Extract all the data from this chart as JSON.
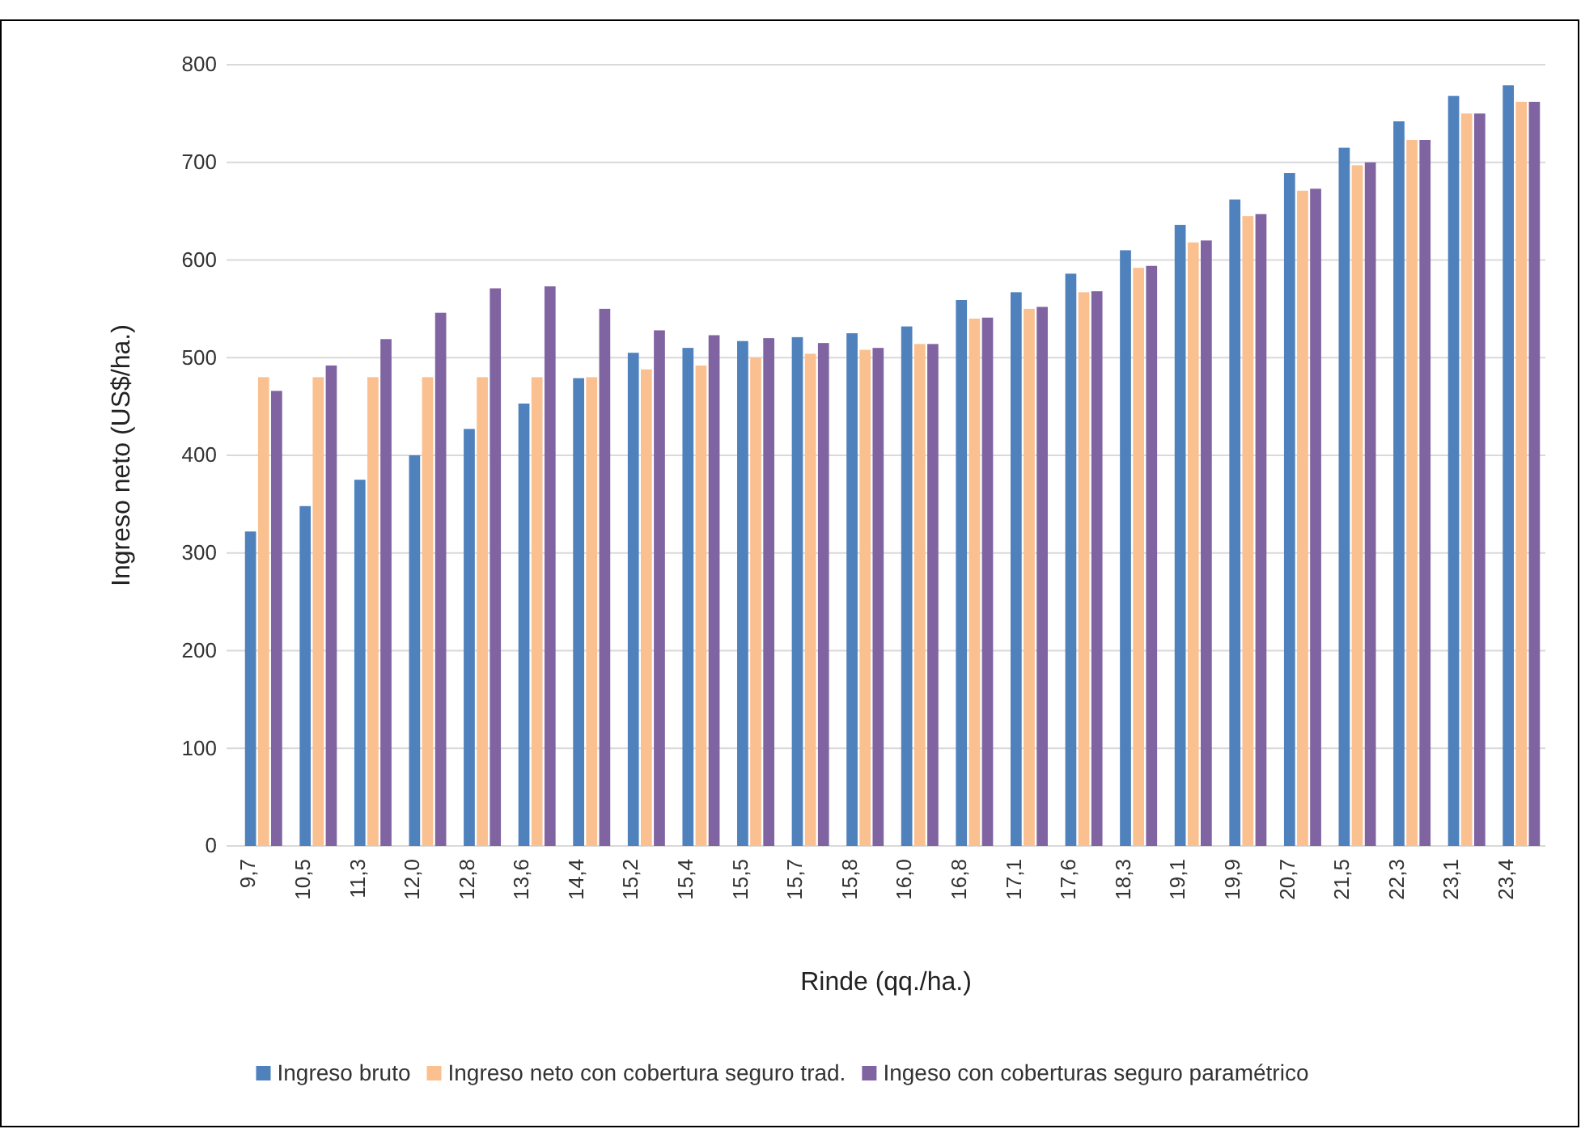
{
  "chart_data": {
    "type": "bar",
    "xlabel": "Rinde (qq./ha.)",
    "ylabel": "Ingreso neto (US$/ha.)",
    "categories": [
      "9,7",
      "10,5",
      "11,3",
      "12,0",
      "12,8",
      "13,6",
      "14,4",
      "15,2",
      "15,4",
      "15,5",
      "15,7",
      "15,8",
      "16,0",
      "16,8",
      "17,1",
      "17,6",
      "18,3",
      "19,1",
      "19,9",
      "20,7",
      "21,5",
      "22,3",
      "23,1",
      "23,4"
    ],
    "series": [
      {
        "name": "Ingreso bruto",
        "color": "#4f81bd",
        "values": [
          322,
          348,
          375,
          400,
          427,
          453,
          479,
          505,
          510,
          517,
          521,
          525,
          532,
          559,
          567,
          586,
          610,
          636,
          662,
          689,
          715,
          742,
          768,
          779
        ]
      },
      {
        "name": "Ingreso neto con cobertura seguro trad.",
        "color": "#fac090",
        "values": [
          480,
          480,
          480,
          480,
          480,
          480,
          480,
          488,
          492,
          500,
          504,
          508,
          514,
          540,
          550,
          567,
          592,
          618,
          645,
          671,
          697,
          723,
          750,
          762
        ]
      },
      {
        "name": "Ingeso con coberturas seguro paramétrico",
        "color": "#8064a2",
        "values": [
          466,
          492,
          519,
          546,
          571,
          573,
          550,
          528,
          523,
          520,
          515,
          510,
          514,
          541,
          552,
          568,
          594,
          620,
          647,
          673,
          700,
          723,
          750,
          762
        ]
      }
    ],
    "ylim": [
      0,
      800
    ],
    "yticks": [
      0,
      100,
      200,
      300,
      400,
      500,
      600,
      700,
      800
    ],
    "grid": "y",
    "legend": "bottom"
  }
}
